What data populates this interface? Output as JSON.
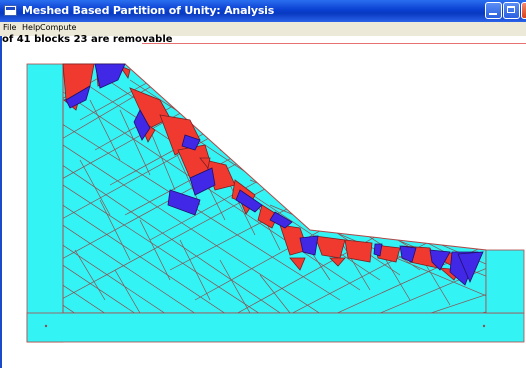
{
  "window": {
    "title": "Meshed Based Partition of Unity: Analysis"
  },
  "menu": {
    "items": [
      "File",
      "Help",
      "Compute"
    ]
  },
  "status": {
    "text": "of 41 blocks 23 are removable"
  },
  "colors": {
    "domain": "#33f3f5",
    "removable_block": "#f03a30",
    "keyblock": "#4128e6",
    "joint_lines": "#8a5050",
    "title_bar": "#0a3fd0"
  }
}
